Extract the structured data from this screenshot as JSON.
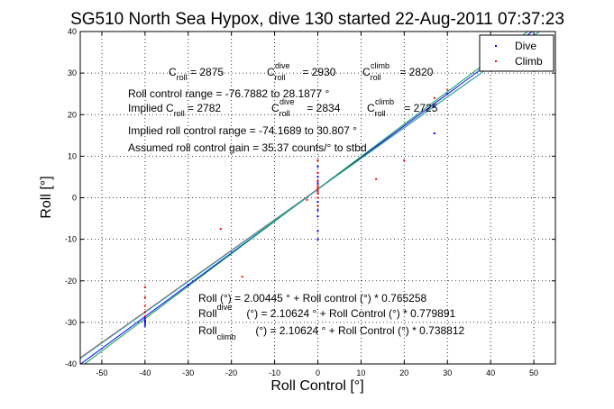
{
  "chart_data": {
    "type": "scatter",
    "title": "SG510 North Sea Hypox, dive 130 started 22-Aug-2011 07:37:23",
    "xlabel": "Roll Control [°]",
    "ylabel": "Roll [°]",
    "xlim": [
      -55,
      55
    ],
    "ylim": [
      -40,
      40
    ],
    "xticks": [
      -50,
      -40,
      -30,
      -20,
      -10,
      0,
      10,
      20,
      30,
      40,
      50
    ],
    "yticks": [
      -40,
      -30,
      -20,
      -10,
      0,
      10,
      20,
      30,
      40
    ],
    "xtick_labels": [
      "-50",
      "-40",
      "-30",
      "-20",
      "-10",
      "0",
      "10",
      "20",
      "30",
      "40",
      "50"
    ],
    "ytick_labels": [
      "-40",
      "-30",
      "-20",
      "-10",
      "0",
      "10",
      "20",
      "30",
      "40"
    ],
    "grid": true,
    "legend_position": "top-right",
    "series": [
      {
        "name": "Dive",
        "color": "#0000ff",
        "points": [
          [
            -40,
            -29
          ],
          [
            -40,
            -29.8
          ],
          [
            -40,
            -30.3
          ],
          [
            -40,
            -30.8
          ],
          [
            -40,
            -29.5
          ],
          [
            0,
            -10
          ],
          [
            0,
            -8
          ],
          [
            0,
            -4.5
          ],
          [
            0,
            -3
          ],
          [
            0,
            -1
          ],
          [
            0,
            1
          ],
          [
            0,
            1.5
          ],
          [
            0,
            2.5
          ],
          [
            0,
            3.5
          ],
          [
            0,
            5
          ],
          [
            0,
            6
          ],
          [
            0,
            7.5
          ],
          [
            -30,
            -21
          ],
          [
            27,
            22
          ],
          [
            30,
            25
          ],
          [
            27,
            15.5
          ]
        ]
      },
      {
        "name": "Climb",
        "color": "#ff0000",
        "points": [
          [
            -40,
            -21.5
          ],
          [
            -40,
            -24
          ],
          [
            -40,
            -26
          ],
          [
            -40,
            -27.5
          ],
          [
            -40,
            -28.5
          ],
          [
            -22.5,
            -7.5
          ],
          [
            -17.5,
            -19
          ],
          [
            0,
            0
          ],
          [
            0,
            1
          ],
          [
            0,
            1.5
          ],
          [
            0,
            2
          ],
          [
            0,
            2.5
          ],
          [
            0,
            3
          ],
          [
            0,
            4
          ],
          [
            0,
            6
          ],
          [
            0,
            9
          ],
          [
            0,
            -2
          ],
          [
            -2.5,
            -0.5
          ],
          [
            13.5,
            4.5
          ],
          [
            20,
            9
          ],
          [
            27,
            24
          ],
          [
            30,
            26
          ]
        ]
      }
    ],
    "fit_lines": [
      {
        "color": "#0000ff",
        "intercept": 2.00445,
        "slope": 0.765258
      },
      {
        "color": "#00a050",
        "intercept": 2.10624,
        "slope": 0.779891
      },
      {
        "color": "#ff0000",
        "intercept": 2.10624,
        "slope": 0.738812
      },
      {
        "color": "#00c8c8",
        "intercept": 2.00445,
        "slope": 0.74
      }
    ],
    "annotations": {
      "c_roll": {
        "base": "C",
        "sub": "roll",
        "value": " = 2875"
      },
      "c_roll_dive": {
        "base": "C",
        "sup": "dive",
        "sub": "roll",
        "value": " = 2930"
      },
      "c_roll_climb": {
        "base": "C",
        "sup": "climb",
        "sub": "roll",
        "value": " = 2820"
      },
      "range": "Roll control range = -76.7882 to 28.1877 °",
      "implied_prefix": "Implied C",
      "implied_sub": "roll",
      "implied_value": " = 2782",
      "implied_dive": {
        "base": "C",
        "sup": "dive",
        "sub": "roll",
        "value": " = 2834"
      },
      "implied_climb": {
        "base": "C",
        "sup": "climb",
        "sub": "roll",
        "value": " = 2725"
      },
      "implied_range": "Implied roll control range = -74.1689 to 30.807 °",
      "gain": "Assumed roll control gain = 35.37 counts/° to stbd",
      "eq1": "Roll (°) = 2.00445 ° + Roll control (°) * 0.765258",
      "eq2_base": "Roll",
      "eq2_sub": "dive",
      "eq2_rest": " (°) = 2.10624 ° + Roll Control (°) * 0.779891",
      "eq3_base": "Roll",
      "eq3_sub": "climb",
      "eq3_rest": " (°) = 2.10624 ° + Roll Control (°) * 0.738812"
    }
  }
}
